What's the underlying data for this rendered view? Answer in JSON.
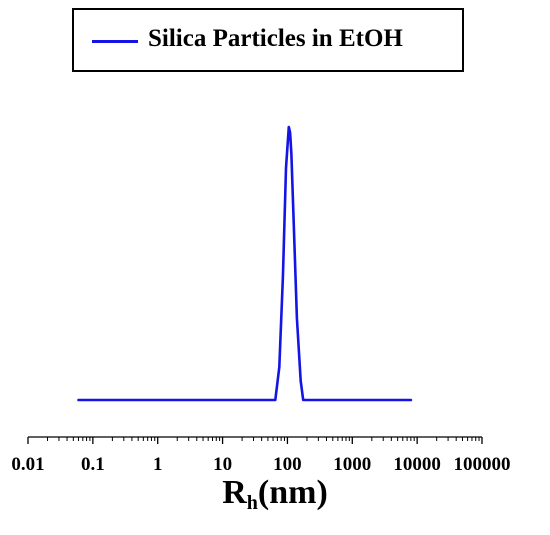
{
  "legend": {
    "label": "Silica Particles in EtOH",
    "color": "#1414e6"
  },
  "axis": {
    "xlabel_main": "R",
    "xlabel_sub": "h",
    "xlabel_unit": "(nm)"
  },
  "chart_data": {
    "type": "line",
    "title": "",
    "xlabel": "Rh(nm)",
    "ylabel": "",
    "xscale": "log",
    "xlim": [
      0.01,
      100000
    ],
    "xticks": [
      "0.01",
      "0.1",
      "1",
      "10",
      "100",
      "1000",
      "10000",
      "100000"
    ],
    "y_axis_shown": false,
    "grid": false,
    "legend_position": "top",
    "series": [
      {
        "name": "Silica Particles in EtOH",
        "color": "#1414e6",
        "x": [
          0.06,
          40,
          65,
          75,
          85,
          95,
          105,
          110,
          115,
          125,
          140,
          160,
          175,
          200,
          1000,
          8000
        ],
        "y": [
          0,
          0,
          0,
          0.12,
          0.45,
          0.85,
          1.0,
          0.98,
          0.9,
          0.65,
          0.3,
          0.07,
          0,
          0,
          0,
          0
        ]
      }
    ]
  }
}
